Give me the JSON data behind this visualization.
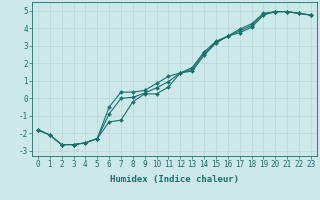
{
  "xlabel": "Humidex (Indice chaleur)",
  "xlim": [
    -0.5,
    23.5
  ],
  "ylim": [
    -3.3,
    5.5
  ],
  "xticks": [
    0,
    1,
    2,
    3,
    4,
    5,
    6,
    7,
    8,
    9,
    10,
    11,
    12,
    13,
    14,
    15,
    16,
    17,
    18,
    19,
    20,
    21,
    22,
    23
  ],
  "yticks": [
    -3,
    -2,
    -1,
    0,
    1,
    2,
    3,
    4,
    5
  ],
  "bg_color": "#cce8e8",
  "grid_color": "#aad4d4",
  "line_color": "#1a7070",
  "line1_y": [
    -1.8,
    -2.1,
    -2.65,
    -2.65,
    -2.55,
    -2.3,
    -1.35,
    -1.25,
    -0.2,
    0.25,
    0.25,
    0.65,
    1.45,
    1.55,
    2.45,
    3.15,
    3.55,
    3.75,
    4.05,
    4.75,
    4.95,
    4.95,
    4.85,
    4.75
  ],
  "line2_y": [
    -1.8,
    -2.1,
    -2.65,
    -2.65,
    -2.55,
    -2.3,
    -0.5,
    0.35,
    0.35,
    0.45,
    0.85,
    1.25,
    1.45,
    1.75,
    2.65,
    3.25,
    3.55,
    3.95,
    4.25,
    4.85,
    4.95,
    4.95,
    4.85,
    4.75
  ],
  "line3_y": [
    -1.8,
    -2.1,
    -2.65,
    -2.65,
    -2.55,
    -2.3,
    -0.9,
    0.0,
    0.05,
    0.3,
    0.6,
    0.95,
    1.45,
    1.65,
    2.55,
    3.2,
    3.55,
    3.85,
    4.15,
    4.8,
    4.95,
    4.95,
    4.85,
    4.75
  ],
  "marker": "D",
  "markersize": 2.0,
  "linewidth": 0.8,
  "font_size_tick": 5.5,
  "font_size_label": 6.5
}
